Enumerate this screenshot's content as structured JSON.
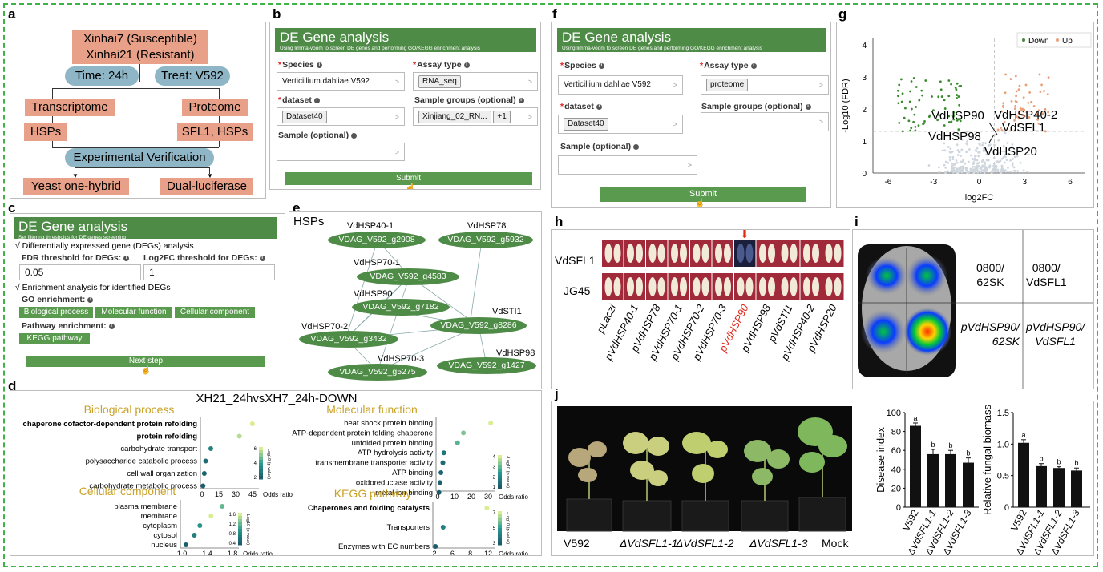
{
  "panel_labels": {
    "a": "a",
    "b": "b",
    "c": "c",
    "d": "d",
    "e": "e",
    "f": "f",
    "g": "g",
    "h": "h",
    "i": "i",
    "j": "j"
  },
  "flow": {
    "top_line1": "Xinhai7 (Susceptible)",
    "top_line2": "Xinhai21 (Resistant)",
    "time": "Time: 24h",
    "treat": "Treat: V592",
    "transcriptome": "Transcriptome",
    "proteome": "Proteome",
    "hsps": "HSPs",
    "sfl1": "SFL1, HSPs",
    "verification": "Experimental Verification",
    "yeast": "Yeast one-hybrid",
    "dual": "Dual-luciferase"
  },
  "panel_b": {
    "title": "DE Gene analysis",
    "subtitle": "Using limma-voom to screen DE genes and performing GO/KEGG enrichment analysis",
    "species_label": "Species",
    "species_value": "Verticillium dahliae V592",
    "assay_label": "Assay type",
    "assay_value": "RNA_seq",
    "dataset_label": "dataset",
    "dataset_value": "Dataset40",
    "groups_label": "Sample groups (optional)",
    "groups_value": "Xinjiang_02_RN...",
    "groups_more": "+1",
    "sample_label": "Sample (optional)",
    "submit": "Submit",
    "caret": ">",
    "req": "*",
    "info": "i"
  },
  "panel_f": {
    "title": "DE Gene analysis",
    "subtitle": "Using limma-voom to screen DE genes and performing GO/KEGG enrichment analysis",
    "species_label": "Species",
    "species_value": "Verticillium dahliae V592",
    "assay_label": "Assay type",
    "assay_value": "proteome",
    "dataset_label": "dataset",
    "dataset_value": "Dataset40",
    "groups_label": "Sample groups (optional)",
    "sample_label": "Sample (optional)",
    "submit": "Submit"
  },
  "panel_c": {
    "title": "DE Gene analysis",
    "subtitle": "Set filtering thresholds for DE genes screening",
    "check1": "√ Differentially expressed gene (DEGs) analysis",
    "fdr_label": "FDR threshold for DEGs:",
    "fdr_value": "0.05",
    "lfc_label": "Log2FC threshold for DEGs:",
    "lfc_value": "1",
    "check2": "√ Enrichment analysis for identified DEGs",
    "go_label": "GO enrichment:",
    "go_bp": "Biological process",
    "go_mf": "Molecular function",
    "go_cc": "Cellular component",
    "pathway_label": "Pathway enrichment:",
    "kegg": "KEGG pathway",
    "next": "Next step"
  },
  "panel_e": {
    "title": "HSPs",
    "nodes": [
      {
        "id": "VDAG_V592_g2908",
        "name": "VdHSP40-1"
      },
      {
        "id": "VDAG_V592_g5932",
        "name": "VdHSP78"
      },
      {
        "id": "VDAG_V592_g4583",
        "name": "VdHSP70-1"
      },
      {
        "id": "VDAG_V592_g7182",
        "name": "VdHSP90"
      },
      {
        "id": "VDAG_V592_g8286",
        "name": "VdSTI1"
      },
      {
        "id": "VDAG_V592_g3432",
        "name": "VdHSP70-2"
      },
      {
        "id": "VDAG_V592_g5275",
        "name": "VdHSP70-3"
      },
      {
        "id": "VDAG_V592_g1427",
        "name": "VdHSP98"
      }
    ]
  },
  "panel_d": {
    "title": "XH21_24hvsXH7_24h-DOWN",
    "legend_title": "-Log10 (p value)",
    "x_title": "Odds ratio",
    "colors": {
      "low": "#1a5e6e",
      "mid": "#2a9d8f",
      "high": "#d9ed92",
      "title": "#c9a227"
    }
  },
  "chart_data": [
    {
      "type": "scatter",
      "title": "Biological process",
      "categories": [
        "chaperone cofactor-dependent protein refolding",
        "protein refolding",
        "carbohydrate transport",
        "polysaccharide catabolic process",
        "cell wall organization",
        "carbohydrate metabolic process"
      ],
      "values": [
        40,
        30,
        8,
        4,
        3,
        2
      ],
      "xlim": [
        0,
        45
      ],
      "xticks": [
        "0",
        "15",
        "30",
        "45"
      ],
      "color_values": [
        6,
        5.5,
        2.5,
        1.6,
        1.4,
        1.2
      ],
      "legend_ticks": [
        "6",
        "4",
        "2"
      ],
      "xlabel": "Odds ratio"
    },
    {
      "type": "scatter",
      "title": "Molecular function",
      "categories": [
        "heat shock protein binding",
        "ATP-dependent protein folding chaperone",
        "unfolded protein binding",
        "ATP hydrolysis activity",
        "transmembrane transporter activity",
        "ATP binding",
        "oxidoreductase activity",
        "metal ion binding"
      ],
      "values": [
        28,
        14,
        11,
        4,
        3.5,
        2.5,
        2,
        1.5
      ],
      "xlim": [
        0,
        30
      ],
      "xticks": [
        "0",
        "10",
        "20",
        "30"
      ],
      "color_values": [
        4.5,
        3.6,
        3.2,
        1.6,
        1.3,
        1.2,
        1.1,
        1.0
      ],
      "legend_ticks": [
        "4",
        "3",
        "2",
        "1"
      ],
      "xlabel": "Odds ratio"
    },
    {
      "type": "scatter",
      "title": "Cellular component",
      "categories": [
        "plasma membrane",
        "membrane",
        "cytoplasm",
        "cytosol",
        "nucleus"
      ],
      "values": [
        1.7,
        1.5,
        1.3,
        1.2,
        1.05
      ],
      "xlim": [
        0.95,
        2.0
      ],
      "xticks": [
        "1.0",
        "1.4",
        "1.8"
      ],
      "color_values": [
        1.2,
        1.6,
        0.9,
        0.7,
        0.4
      ],
      "legend_ticks": [
        "1.6",
        "1.2",
        "0.8",
        "0.4"
      ],
      "xlabel": "Odds ratio"
    },
    {
      "type": "scatter",
      "title": "KEGG pathway",
      "categories": [
        "Chaperones and folding catalysts",
        "Transporters",
        "Enzymes with EC numbers"
      ],
      "values": [
        11.5,
        3,
        1.5
      ],
      "xlim": [
        1,
        13
      ],
      "xticks": [
        "2",
        "6",
        "8",
        "12"
      ],
      "color_values": [
        7,
        3,
        1.5
      ],
      "legend_ticks": [
        "7",
        "5",
        "3"
      ],
      "xlabel": "Odds ratio"
    },
    {
      "type": "scatter",
      "title": "",
      "xlabel": "log2FC",
      "ylabel": "-Log10 (FDR)",
      "xlim": [
        -7,
        7
      ],
      "ylim": [
        0,
        4.2
      ],
      "xticks": [
        "-6",
        "-3",
        "0",
        "3",
        "6"
      ],
      "yticks": [
        "0",
        "1",
        "2",
        "3",
        "4"
      ],
      "series": [
        {
          "name": "Down",
          "color": "#3a8a2e"
        },
        {
          "name": "Up",
          "color": "#e8a07a"
        }
      ],
      "annotations": [
        "VdHSP90",
        "VdHSP40-2",
        "VdSFL1",
        "VdHSP98",
        "VdHSP20"
      ]
    },
    {
      "type": "bar",
      "categories": [
        "V592",
        "ΔVdSFL1-1",
        "ΔVdSFL1-2",
        "ΔVdSFL1-3"
      ],
      "values": [
        86,
        56,
        56,
        47
      ],
      "errors": [
        3,
        5,
        4,
        5
      ],
      "letters": [
        "a",
        "b",
        "b",
        "b"
      ],
      "ylim": [
        0,
        100
      ],
      "yticks": [
        "0",
        "20",
        "40",
        "60",
        "80",
        "100"
      ],
      "ylabel": "Disease index"
    },
    {
      "type": "bar",
      "categories": [
        "V592",
        "ΔVdSFL1-1",
        "ΔVdSFL1-2",
        "ΔVdSFL1-3"
      ],
      "values": [
        1.02,
        0.65,
        0.62,
        0.58
      ],
      "errors": [
        0.05,
        0.04,
        0.02,
        0.04
      ],
      "letters": [
        "a",
        "b",
        "b",
        "b"
      ],
      "ylim": [
        0,
        1.5
      ],
      "yticks": [
        "0",
        "0.5",
        "1.0",
        "1.5"
      ],
      "ylabel": "Relative fungal biomass"
    }
  ],
  "panel_h": {
    "row1": "VdSFL1",
    "row2": "JG45",
    "cols": [
      "pLaczi",
      "pVdHSP40-1",
      "pVdHSP78",
      "pVdHSP70-1",
      "pVdHSP70-2",
      "pVdHSP70-3",
      "pVdHSP90",
      "pVdHSP98",
      "pVdSTI1",
      "pVdHSP40-2",
      "pVdHSP20"
    ],
    "highlight": "pVdHSP90"
  },
  "panel_i": {
    "tr": "0800/\nVdSFL1",
    "tl": "0800/\n62SK",
    "bl": "pVdHSP90/\n62SK",
    "br": "pVdHSP90/\nVdSFL1"
  },
  "panel_j": {
    "plants": [
      "V592",
      "ΔVdSFL1-1",
      "ΔVdSFL1-2",
      "ΔVdSFL1-3",
      "Mock"
    ]
  }
}
